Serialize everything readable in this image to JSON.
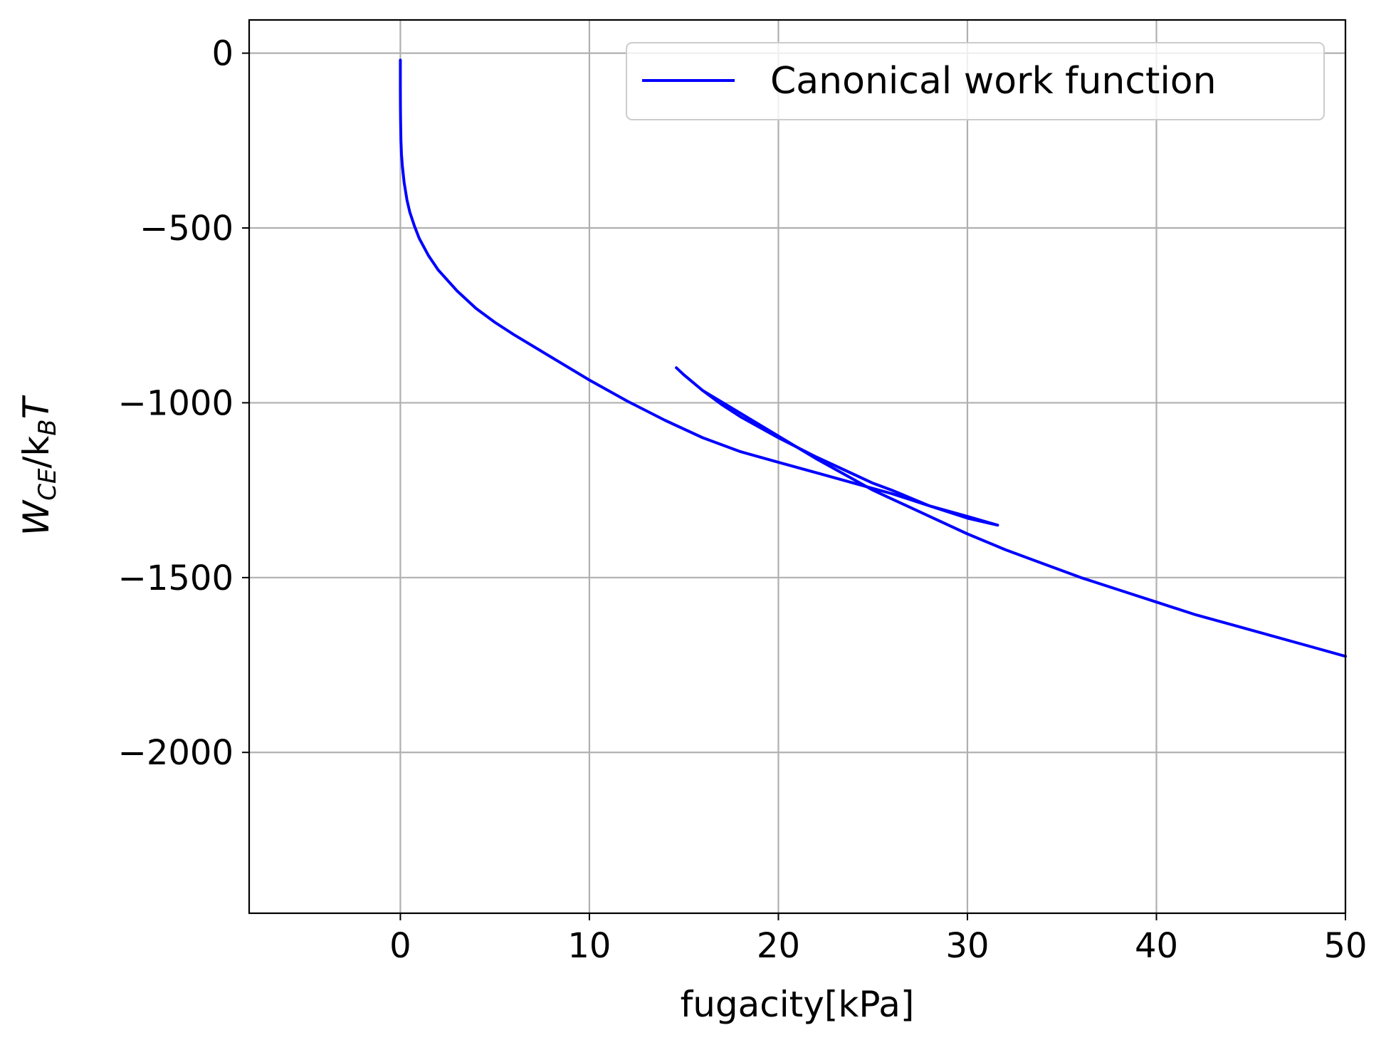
{
  "chart_data": {
    "type": "line",
    "title": "",
    "xlabel": "fugacity[kPa]",
    "ylabel": {
      "main": "W",
      "sub1": "CE",
      "slash": "/k",
      "sub2": "B",
      "tail": "T"
    },
    "xlim": [
      -8,
      50
    ],
    "ylim": [
      -2460,
      95
    ],
    "xticks": [
      0,
      10,
      20,
      30,
      40,
      50
    ],
    "yticks": [
      0,
      -500,
      -1000,
      -1500,
      -2000
    ],
    "xtick_labels": [
      "0",
      "10",
      "20",
      "30",
      "40",
      "50"
    ],
    "ytick_labels": [
      "0",
      "−500",
      "−1000",
      "−1500",
      "−2000"
    ],
    "grid": true,
    "legend_position": "top-right",
    "series": [
      {
        "name": "Canonical work function",
        "color": "#0000ff",
        "x": [
          0.0,
          0.001,
          0.005,
          0.01,
          0.03,
          0.06,
          0.1,
          0.2,
          0.35,
          0.5,
          0.75,
          1.0,
          1.5,
          2.0,
          3.0,
          4.0,
          5.0,
          6.0,
          8.0,
          10.0,
          12.0,
          14.0,
          16.0,
          18.0,
          20.0,
          22.0,
          24.0,
          25.0,
          26.0,
          28.0,
          30.0,
          31.6,
          30.0,
          28.0,
          26.0,
          25.0,
          24.0,
          22.0,
          20.0,
          18.0,
          17.0,
          16.0,
          15.0,
          14.6
        ],
        "y": [
          -20,
          -100,
          -150,
          -190,
          -250,
          -290,
          -320,
          -370,
          -420,
          -455,
          -495,
          -530,
          -580,
          -620,
          -680,
          -730,
          -770,
          -805,
          -870,
          -935,
          -995,
          -1050,
          -1100,
          -1140,
          -1170,
          -1200,
          -1230,
          -1245,
          -1260,
          -1295,
          -1325,
          -1350,
          -1330,
          -1295,
          -1250,
          -1230,
          -1205,
          -1155,
          -1100,
          -1040,
          -1005,
          -965,
          -920,
          -900
        ]
      },
      {
        "name": "",
        "color": "#0000ff",
        "x": [
          16.0,
          18.0,
          20.0,
          22.0,
          24.0,
          25.0,
          26.0,
          28.0,
          30.0,
          32.0,
          34.0,
          36.0,
          38.0,
          40.0,
          42.0,
          44.0,
          46.0,
          48.0,
          50.0
        ],
        "y": [
          -965,
          -1030,
          -1095,
          -1160,
          -1220,
          -1250,
          -1275,
          -1325,
          -1375,
          -1420,
          -1460,
          -1500,
          -1535,
          -1570,
          -1605,
          -1635,
          -1665,
          -1695,
          -1725
        ]
      }
    ]
  }
}
